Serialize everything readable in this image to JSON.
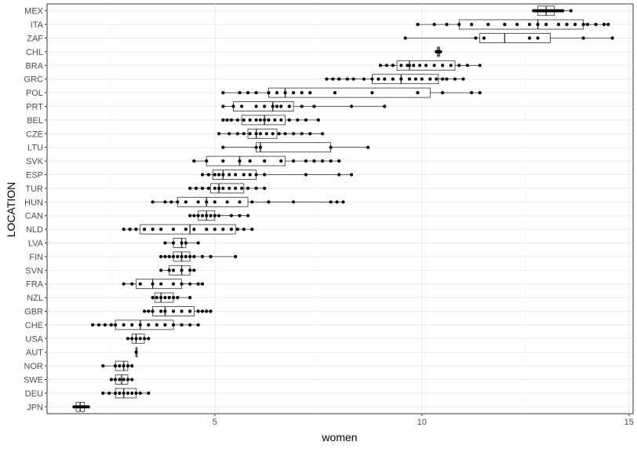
{
  "chart_data": {
    "type": "boxplot",
    "xlabel": "women",
    "ylabel": "LOCATION",
    "xlim": [
      0.95,
      15.1
    ],
    "x_ticks": [
      5,
      10,
      15
    ],
    "grid": true,
    "orientation": "horizontal",
    "categories": [
      "MEX",
      "ITA",
      "ZAF",
      "CHL",
      "BRA",
      "GRC",
      "POL",
      "PRT",
      "BEL",
      "CZE",
      "LTU",
      "SVK",
      "ESP",
      "TUR",
      "HUN",
      "CAN",
      "NLD",
      "LVA",
      "FIN",
      "SVN",
      "FRA",
      "NZL",
      "GBR",
      "CHE",
      "USA",
      "AUT",
      "NOR",
      "SWE",
      "DEU",
      "JPN"
    ],
    "boxes": [
      {
        "label": "MEX",
        "min": 12.7,
        "q1": 12.8,
        "median": 13.0,
        "q3": 13.2,
        "max": 13.6,
        "points": [
          12.7,
          12.75,
          12.8,
          12.85,
          12.9,
          12.95,
          13.0,
          13.05,
          13.1,
          13.15,
          13.2,
          13.25,
          13.3,
          13.35,
          13.4,
          13.6
        ]
      },
      {
        "label": "ITA",
        "min": 9.9,
        "q1": 10.9,
        "median": 12.8,
        "q3": 13.9,
        "max": 14.5,
        "points": [
          9.9,
          10.3,
          10.6,
          10.9,
          11.2,
          11.6,
          12.0,
          12.3,
          12.6,
          12.8,
          13.0,
          13.3,
          13.5,
          13.7,
          13.9,
          14.0,
          14.2,
          14.4,
          14.5
        ]
      },
      {
        "label": "ZAF",
        "min": 9.6,
        "q1": 11.4,
        "median": 12.0,
        "q3": 13.1,
        "max": 14.6,
        "points": [
          9.6,
          11.3,
          11.5,
          12.6,
          12.8,
          13.9,
          14.6
        ]
      },
      {
        "label": "CHL",
        "min": 10.35,
        "q1": 10.37,
        "median": 10.4,
        "q3": 10.43,
        "max": 10.45,
        "points": [
          10.35,
          10.38,
          10.4,
          10.42,
          10.45
        ]
      },
      {
        "label": "BRA",
        "min": 9.0,
        "q1": 9.4,
        "median": 9.7,
        "q3": 10.8,
        "max": 11.4,
        "points": [
          9.0,
          9.15,
          9.3,
          9.5,
          9.65,
          9.7,
          9.8,
          9.95,
          10.1,
          10.3,
          10.5,
          10.7,
          10.9,
          11.1,
          11.4
        ]
      },
      {
        "label": "GRC",
        "min": 7.7,
        "q1": 8.8,
        "median": 9.5,
        "q3": 10.4,
        "max": 11.0,
        "points": [
          7.7,
          7.85,
          8.0,
          8.2,
          8.35,
          8.6,
          8.8,
          8.95,
          9.1,
          9.3,
          9.5,
          9.7,
          9.85,
          10.0,
          10.2,
          10.35,
          10.5,
          10.6,
          10.8,
          11.0
        ]
      },
      {
        "label": "POL",
        "min": 5.2,
        "q1": 6.3,
        "median": 6.7,
        "q3": 10.2,
        "max": 11.4,
        "points": [
          5.2,
          5.6,
          5.8,
          6.0,
          6.3,
          6.5,
          6.7,
          6.9,
          7.1,
          7.3,
          7.9,
          8.8,
          9.9,
          10.5,
          11.2,
          11.4
        ]
      },
      {
        "label": "PRT",
        "min": 5.2,
        "q1": 5.45,
        "median": 6.4,
        "q3": 6.9,
        "max": 9.1,
        "points": [
          5.2,
          5.45,
          5.65,
          6.0,
          6.2,
          6.4,
          6.5,
          6.6,
          6.8,
          7.1,
          7.4,
          8.3,
          9.1
        ]
      },
      {
        "label": "BEL",
        "min": 5.2,
        "q1": 5.65,
        "median": 6.2,
        "q3": 6.7,
        "max": 7.5,
        "points": [
          5.2,
          5.3,
          5.4,
          5.55,
          5.7,
          5.85,
          6.0,
          6.1,
          6.2,
          6.3,
          6.45,
          6.6,
          6.8,
          7.0,
          7.2,
          7.5
        ]
      },
      {
        "label": "CZE",
        "min": 5.1,
        "q1": 5.8,
        "median": 6.0,
        "q3": 6.5,
        "max": 7.6,
        "points": [
          5.1,
          5.35,
          5.55,
          5.7,
          5.85,
          6.0,
          6.1,
          6.25,
          6.4,
          6.55,
          6.7,
          6.9,
          7.1,
          7.3,
          7.6
        ]
      },
      {
        "label": "LTU",
        "min": 5.2,
        "q1": 6.0,
        "median": 6.1,
        "q3": 7.8,
        "max": 8.7,
        "points": [
          5.2,
          6.0,
          6.1,
          7.8,
          8.7
        ]
      },
      {
        "label": "SVK",
        "min": 4.5,
        "q1": 4.8,
        "median": 5.6,
        "q3": 6.7,
        "max": 8.0,
        "points": [
          4.5,
          4.8,
          5.2,
          5.6,
          5.85,
          6.2,
          6.6,
          6.9,
          7.2,
          7.4,
          7.6,
          7.8,
          8.0
        ]
      },
      {
        "label": "ESP",
        "min": 4.7,
        "q1": 4.95,
        "median": 5.2,
        "q3": 6.0,
        "max": 8.3,
        "points": [
          4.7,
          4.85,
          5.0,
          5.1,
          5.2,
          5.35,
          5.5,
          5.7,
          5.85,
          6.0,
          6.2,
          7.2,
          8.0,
          8.3
        ]
      },
      {
        "label": "TUR",
        "min": 4.4,
        "q1": 4.9,
        "median": 5.1,
        "q3": 5.7,
        "max": 6.2,
        "points": [
          4.4,
          4.55,
          4.7,
          4.85,
          5.0,
          5.1,
          5.2,
          5.35,
          5.5,
          5.65,
          5.8,
          6.0,
          6.2
        ]
      },
      {
        "label": "HUN",
        "min": 3.5,
        "q1": 4.1,
        "median": 4.8,
        "q3": 5.8,
        "max": 8.1,
        "points": [
          3.5,
          3.8,
          3.95,
          4.1,
          4.3,
          4.6,
          4.8,
          5.0,
          5.3,
          5.6,
          5.9,
          6.3,
          6.9,
          7.8,
          7.95,
          8.1
        ]
      },
      {
        "label": "CAN",
        "min": 4.4,
        "q1": 4.6,
        "median": 4.8,
        "q3": 5.0,
        "max": 5.8,
        "points": [
          4.4,
          4.5,
          4.6,
          4.7,
          4.8,
          4.9,
          5.0,
          5.1,
          5.4,
          5.6,
          5.8
        ]
      },
      {
        "label": "NLD",
        "min": 2.8,
        "q1": 3.2,
        "median": 4.4,
        "q3": 5.5,
        "max": 5.9,
        "points": [
          2.8,
          2.95,
          3.1,
          3.3,
          3.5,
          3.7,
          4.0,
          4.3,
          4.5,
          4.8,
          5.0,
          5.2,
          5.4,
          5.55,
          5.7,
          5.9
        ]
      },
      {
        "label": "LVA",
        "min": 3.8,
        "q1": 4.0,
        "median": 4.2,
        "q3": 4.3,
        "max": 4.6,
        "points": [
          3.8,
          4.0,
          4.2,
          4.3,
          4.6
        ]
      },
      {
        "label": "FIN",
        "min": 3.7,
        "q1": 4.0,
        "median": 4.2,
        "q3": 4.4,
        "max": 5.5,
        "points": [
          3.7,
          3.8,
          3.9,
          4.0,
          4.1,
          4.2,
          4.3,
          4.4,
          4.5,
          4.7,
          4.9,
          5.5
        ]
      },
      {
        "label": "SVN",
        "min": 3.7,
        "q1": 3.9,
        "median": 4.2,
        "q3": 4.4,
        "max": 4.5,
        "points": [
          3.7,
          3.9,
          4.0,
          4.2,
          4.4,
          4.5
        ]
      },
      {
        "label": "FRA",
        "min": 2.8,
        "q1": 3.1,
        "median": 3.5,
        "q3": 4.2,
        "max": 4.7,
        "points": [
          2.8,
          3.0,
          3.2,
          3.5,
          3.7,
          4.0,
          4.2,
          4.4,
          4.6,
          4.7
        ]
      },
      {
        "label": "NZL",
        "min": 3.5,
        "q1": 3.55,
        "median": 3.7,
        "q3": 4.0,
        "max": 4.4,
        "points": [
          3.5,
          3.6,
          3.7,
          3.8,
          3.9,
          4.0,
          4.1,
          4.4
        ]
      },
      {
        "label": "GBR",
        "min": 3.3,
        "q1": 3.5,
        "median": 3.8,
        "q3": 4.5,
        "max": 4.9,
        "points": [
          3.3,
          3.4,
          3.5,
          3.7,
          3.8,
          4.0,
          4.2,
          4.4,
          4.6,
          4.7,
          4.8,
          4.9
        ]
      },
      {
        "label": "CHE",
        "min": 2.05,
        "q1": 2.6,
        "median": 3.2,
        "q3": 4.0,
        "max": 4.6,
        "points": [
          2.05,
          2.2,
          2.35,
          2.5,
          2.6,
          2.8,
          3.0,
          3.2,
          3.4,
          3.6,
          3.8,
          4.0,
          4.2,
          4.4,
          4.6
        ]
      },
      {
        "label": "USA",
        "min": 2.9,
        "q1": 3.0,
        "median": 3.1,
        "q3": 3.3,
        "max": 3.4,
        "points": [
          2.9,
          3.0,
          3.1,
          3.2,
          3.3,
          3.4
        ]
      },
      {
        "label": "AUT",
        "min": 3.1,
        "q1": 3.1,
        "median": 3.1,
        "q3": 3.1,
        "max": 3.1,
        "points": [
          3.1
        ]
      },
      {
        "label": "NOR",
        "min": 2.3,
        "q1": 2.6,
        "median": 2.8,
        "q3": 2.9,
        "max": 3.0,
        "points": [
          2.3,
          2.6,
          2.7,
          2.8,
          2.9,
          3.0
        ]
      },
      {
        "label": "SWE",
        "min": 2.5,
        "q1": 2.6,
        "median": 2.75,
        "q3": 2.9,
        "max": 3.0,
        "points": [
          2.5,
          2.6,
          2.7,
          2.8,
          2.9,
          3.0
        ]
      },
      {
        "label": "DEU",
        "min": 2.3,
        "q1": 2.6,
        "median": 2.8,
        "q3": 3.1,
        "max": 3.4,
        "points": [
          2.3,
          2.45,
          2.6,
          2.7,
          2.8,
          2.9,
          3.0,
          3.1,
          3.2,
          3.4
        ]
      },
      {
        "label": "JPN",
        "min": 1.6,
        "q1": 1.65,
        "median": 1.75,
        "q3": 1.85,
        "max": 1.95,
        "points": [
          1.6,
          1.65,
          1.7,
          1.75,
          1.8,
          1.85,
          1.9,
          1.95
        ]
      }
    ]
  }
}
